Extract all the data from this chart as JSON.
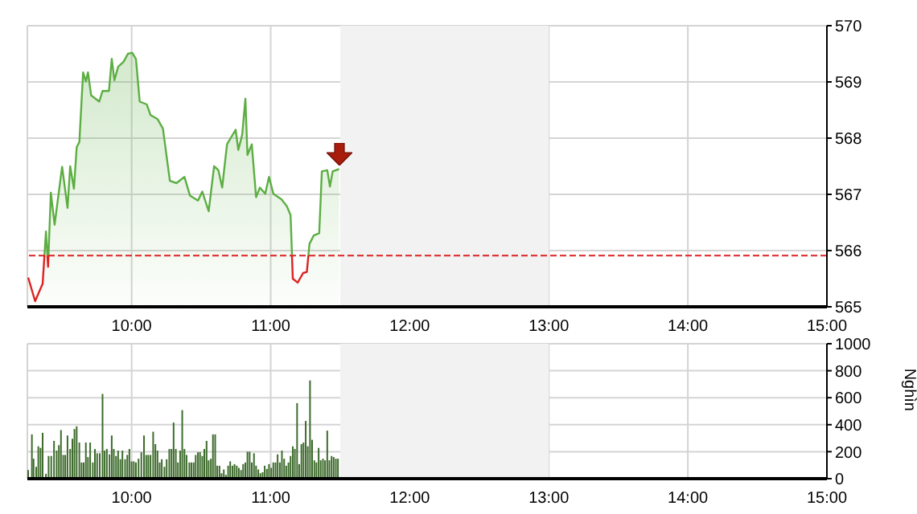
{
  "chart_data": [
    {
      "type": "area",
      "xlim": [
        9.25,
        15
      ],
      "xticks": [
        {
          "value": 10,
          "label": "10:00"
        },
        {
          "value": 11,
          "label": "11:00"
        },
        {
          "value": 12,
          "label": "12:00"
        },
        {
          "value": 13,
          "label": "13:00"
        },
        {
          "value": 14,
          "label": "14:00"
        },
        {
          "value": 15,
          "label": "15:00"
        }
      ],
      "ylim": [
        565,
        570
      ],
      "yticks": [
        565,
        566,
        567,
        568,
        569,
        570
      ],
      "grid": true,
      "series": [
        {
          "color": "#5cae43",
          "x": [
            9.256,
            9.306,
            9.36,
            9.384,
            9.399,
            9.419,
            9.446,
            9.5,
            9.539,
            9.558,
            9.585,
            9.605,
            9.624,
            9.651,
            9.671,
            9.686,
            9.709,
            9.767,
            9.791,
            9.837,
            9.857,
            9.876,
            9.903,
            9.942,
            9.973,
            10.004,
            10.031,
            10.058,
            10.109,
            10.136,
            10.186,
            10.225,
            10.275,
            10.322,
            10.38,
            10.419,
            10.477,
            10.508,
            10.554,
            10.593,
            10.624,
            10.651,
            10.686,
            10.748,
            10.767,
            10.795,
            10.818,
            10.833,
            10.864,
            10.895,
            10.922,
            10.961,
            10.988,
            11.019,
            11.078,
            11.116,
            11.143,
            11.159,
            11.194,
            11.233,
            11.26,
            11.279,
            11.31,
            11.349,
            11.368,
            11.407,
            11.426,
            11.446,
            11.492
          ],
          "values": [
            565.52,
            565.1,
            565.41,
            566.34,
            565.71,
            567.03,
            566.46,
            567.49,
            566.76,
            567.5,
            567.1,
            567.84,
            567.93,
            569.17,
            569.01,
            569.17,
            568.76,
            568.65,
            568.84,
            568.84,
            569.41,
            569.03,
            569.27,
            569.36,
            569.5,
            569.52,
            569.41,
            568.65,
            568.6,
            568.41,
            568.34,
            568.17,
            567.24,
            567.2,
            567.31,
            566.98,
            566.89,
            567.05,
            566.7,
            567.5,
            567.43,
            567.12,
            567.89,
            568.15,
            567.79,
            568.06,
            568.7,
            567.7,
            567.89,
            566.95,
            567.12,
            567.01,
            567.31,
            567.01,
            566.91,
            566.79,
            566.63,
            565.5,
            565.43,
            565.6,
            565.62,
            566.12,
            566.27,
            566.31,
            567.41,
            567.43,
            567.14,
            567.41,
            567.45
          ]
        }
      ],
      "ref_lines": [
        {
          "axis": "y",
          "value": 565.91,
          "color": "#dd2222",
          "line_style": "dashed"
        }
      ],
      "bands": [
        {
          "axis": "x",
          "from": 11.5,
          "to": 13,
          "color": "#f2f2f2"
        }
      ]
    },
    {
      "type": "bar",
      "xlim": [
        9.25,
        15
      ],
      "xticks": [
        {
          "value": 10,
          "label": "10:00"
        },
        {
          "value": 11,
          "label": "11:00"
        },
        {
          "value": 12,
          "label": "12:00"
        },
        {
          "value": 13,
          "label": "13:00"
        },
        {
          "value": 14,
          "label": "14:00"
        },
        {
          "value": 15,
          "label": "15:00"
        }
      ],
      "ylim": [
        0,
        1000
      ],
      "yticks": [
        0,
        200,
        400,
        600,
        800,
        1000
      ],
      "ylabel": "Nghìn",
      "grid": true,
      "series": [
        {
          "color": "#3d6b2c",
          "x": [
            9.256,
            9.283,
            9.295,
            9.314,
            9.329,
            9.345,
            9.36,
            9.384,
            9.403,
            9.422,
            9.442,
            9.461,
            9.477,
            9.492,
            9.508,
            9.523,
            9.539,
            9.558,
            9.574,
            9.589,
            9.605,
            9.624,
            9.64,
            9.655,
            9.671,
            9.686,
            9.702,
            9.721,
            9.736,
            9.752,
            9.771,
            9.791,
            9.806,
            9.822,
            9.841,
            9.857,
            9.872,
            9.888,
            9.903,
            9.919,
            9.934,
            9.953,
            9.969,
            9.984,
            10,
            10.016,
            10.031,
            10.05,
            10.07,
            10.089,
            10.105,
            10.12,
            10.136,
            10.155,
            10.171,
            10.186,
            10.202,
            10.217,
            10.236,
            10.252,
            10.271,
            10.287,
            10.302,
            10.318,
            10.333,
            10.349,
            10.364,
            10.38,
            10.395,
            10.415,
            10.43,
            10.446,
            10.461,
            10.477,
            10.492,
            10.508,
            10.523,
            10.539,
            10.554,
            10.57,
            10.585,
            10.601,
            10.616,
            10.632,
            10.647,
            10.663,
            10.678,
            10.694,
            10.709,
            10.725,
            10.74,
            10.756,
            10.771,
            10.787,
            10.802,
            10.818,
            10.833,
            10.849,
            10.864,
            10.88,
            10.895,
            10.911,
            10.926,
            10.942,
            10.957,
            10.973,
            10.988,
            11.004,
            11.019,
            11.035,
            11.05,
            11.066,
            11.081,
            11.097,
            11.112,
            11.128,
            11.143,
            11.159,
            11.174,
            11.19,
            11.205,
            11.221,
            11.236,
            11.252,
            11.267,
            11.283,
            11.298,
            11.314,
            11.329,
            11.345,
            11.36,
            11.376,
            11.391,
            11.407,
            11.422,
            11.438,
            11.453,
            11.469,
            11.484
          ],
          "values": [
            64,
            328,
            148,
            88,
            240,
            228,
            340,
            36,
            168,
            168,
            280,
            208,
            248,
            360,
            176,
            176,
            320,
            220,
            296,
            368,
            388,
            268,
            120,
            120,
            268,
            160,
            268,
            120,
            220,
            188,
            188,
            628,
            208,
            220,
            180,
            320,
            220,
            168,
            208,
            144,
            208,
            144,
            176,
            220,
            128,
            128,
            120,
            148,
            196,
            320,
            176,
            176,
            176,
            348,
            256,
            208,
            120,
            144,
            88,
            144,
            220,
            220,
            416,
            220,
            120,
            208,
            508,
            220,
            176,
            120,
            120,
            120,
            176,
            196,
            196,
            168,
            220,
            280,
            136,
            148,
            328,
            328,
            96,
            96,
            40,
            68,
            28,
            96,
            128,
            96,
            108,
            96,
            80,
            64,
            108,
            120,
            200,
            200,
            120,
            188,
            96,
            68,
            40,
            48,
            96,
            72,
            108,
            80,
            120,
            120,
            180,
            120,
            208,
            148,
            96,
            120,
            168,
            240,
            220,
            560,
            108,
            256,
            268,
            428,
            240,
            728,
            288,
            136,
            120,
            228,
            136,
            148,
            136,
            356,
            136,
            168,
            160,
            148,
            148
          ]
        }
      ],
      "bands": [
        {
          "axis": "x",
          "from": 11.5,
          "to": 13,
          "color": "#f2f2f2"
        }
      ]
    }
  ]
}
